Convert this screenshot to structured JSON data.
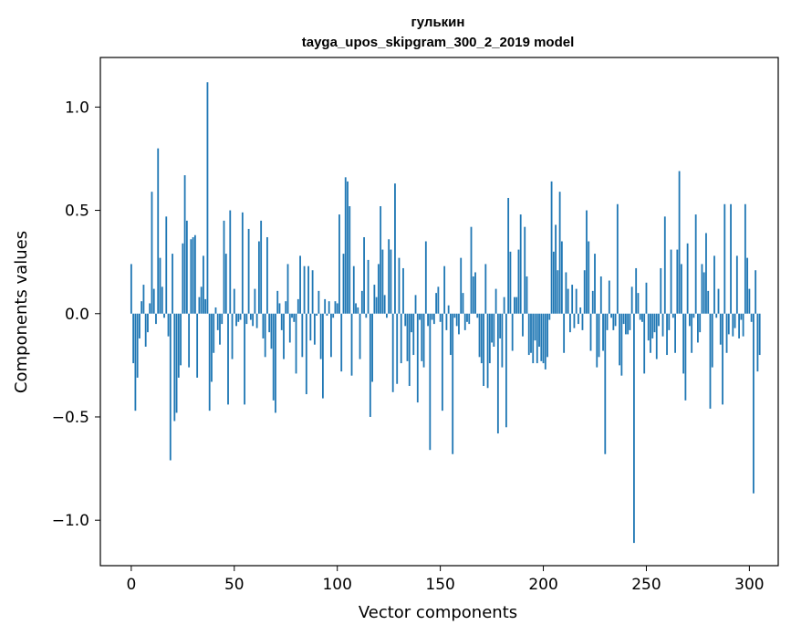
{
  "chart_data": {
    "type": "bar",
    "title": "гулькин",
    "subtitle": "tayga_upos_skipgram_300_2_2019 model",
    "xlabel": "Vector components",
    "ylabel": "Components values",
    "xlim": [
      -15,
      314
    ],
    "ylim": [
      -1.22,
      1.24
    ],
    "xticks": [
      {
        "value": 0,
        "label": "0"
      },
      {
        "value": 50,
        "label": "50"
      },
      {
        "value": 100,
        "label": "100"
      },
      {
        "value": 150,
        "label": "150"
      },
      {
        "value": 200,
        "label": "200"
      },
      {
        "value": 250,
        "label": "250"
      },
      {
        "value": 300,
        "label": "300"
      }
    ],
    "yticks": [
      {
        "value": 1.0,
        "label": "1.0"
      },
      {
        "value": 0.5,
        "label": "0.5"
      },
      {
        "value": 0.0,
        "label": "0.0"
      },
      {
        "value": -0.5,
        "label": "−0.5"
      },
      {
        "value": -1.0,
        "label": "−1.0"
      }
    ],
    "grid": false,
    "bar_color": "#1f77b4",
    "values": [
      0.24,
      -0.24,
      -0.47,
      -0.31,
      -0.12,
      0.06,
      0.14,
      -0.16,
      -0.09,
      0.05,
      0.59,
      0.12,
      -0.05,
      0.8,
      0.27,
      0.13,
      -0.02,
      0.47,
      -0.11,
      -0.71,
      0.29,
      -0.52,
      -0.48,
      -0.31,
      -0.25,
      0.34,
      0.67,
      0.45,
      -0.26,
      0.36,
      0.37,
      0.38,
      -0.31,
      0.08,
      0.13,
      0.28,
      0.07,
      1.12,
      -0.47,
      -0.33,
      -0.19,
      0.03,
      -0.08,
      -0.15,
      -0.05,
      0.45,
      0.29,
      -0.44,
      0.5,
      -0.22,
      0.12,
      -0.06,
      -0.04,
      -0.03,
      0.49,
      -0.44,
      -0.05,
      0.41,
      -0.03,
      -0.06,
      0.12,
      -0.07,
      0.35,
      0.45,
      -0.12,
      -0.21,
      0.37,
      -0.09,
      -0.17,
      -0.42,
      -0.48,
      0.11,
      0.05,
      -0.08,
      -0.22,
      0.06,
      0.24,
      -0.14,
      -0.02,
      -0.04,
      -0.29,
      0.07,
      0.28,
      -0.21,
      0.23,
      -0.39,
      0.23,
      -0.13,
      0.21,
      -0.15,
      -0.01,
      0.11,
      -0.22,
      -0.41,
      0.07,
      -0.01,
      0.06,
      -0.21,
      -0.02,
      0.06,
      0.05,
      0.48,
      -0.28,
      0.29,
      0.66,
      0.64,
      0.52,
      -0.3,
      0.23,
      0.05,
      0.03,
      -0.22,
      0.11,
      0.37,
      -0.02,
      0.26,
      -0.5,
      -0.33,
      0.14,
      0.08,
      0.24,
      0.52,
      0.31,
      0.09,
      -0.02,
      0.36,
      0.31,
      -0.38,
      0.63,
      -0.34,
      0.27,
      -0.24,
      0.22,
      -0.06,
      -0.23,
      -0.35,
      -0.09,
      -0.2,
      0.09,
      -0.43,
      -0.03,
      -0.23,
      -0.26,
      0.35,
      -0.06,
      -0.66,
      -0.03,
      -0.05,
      0.1,
      0.13,
      -0.04,
      -0.47,
      0.23,
      -0.08,
      0.04,
      -0.2,
      -0.68,
      -0.02,
      -0.06,
      -0.1,
      0.27,
      0.1,
      -0.08,
      -0.04,
      -0.05,
      0.42,
      0.18,
      0.2,
      -0.02,
      -0.21,
      -0.24,
      -0.35,
      0.24,
      -0.36,
      -0.24,
      -0.14,
      -0.16,
      0.12,
      -0.58,
      -0.12,
      -0.26,
      0.08,
      -0.55,
      0.56,
      0.3,
      -0.18,
      0.08,
      0.08,
      0.31,
      0.48,
      -0.11,
      0.42,
      0.18,
      -0.2,
      -0.19,
      -0.24,
      -0.13,
      -0.24,
      -0.16,
      -0.23,
      -0.24,
      -0.27,
      -0.21,
      -0.03,
      0.64,
      0.3,
      0.43,
      0.21,
      0.59,
      0.35,
      -0.19,
      0.2,
      0.12,
      -0.09,
      0.14,
      -0.07,
      0.12,
      -0.05,
      0.03,
      -0.08,
      0.21,
      0.5,
      0.35,
      -0.18,
      0.11,
      0.29,
      -0.26,
      -0.21,
      0.18,
      -0.18,
      -0.68,
      -0.08,
      0.16,
      -0.02,
      -0.08,
      -0.06,
      0.53,
      -0.25,
      -0.3,
      -0.05,
      -0.1,
      -0.1,
      -0.08,
      0.13,
      -1.11,
      0.22,
      0.1,
      -0.03,
      -0.04,
      -0.29,
      0.15,
      -0.13,
      -0.19,
      -0.12,
      -0.09,
      -0.22,
      -0.06,
      0.22,
      -0.11,
      0.47,
      -0.2,
      -0.08,
      0.31,
      -0.02,
      -0.19,
      0.31,
      0.69,
      0.24,
      -0.29,
      -0.42,
      0.34,
      -0.06,
      -0.19,
      -0.02,
      0.48,
      -0.14,
      -0.09,
      0.24,
      0.2,
      0.39,
      0.11,
      -0.46,
      -0.26,
      0.28,
      -0.02,
      0.12,
      -0.15,
      -0.44,
      0.53,
      -0.19,
      -0.1,
      0.53,
      -0.11,
      -0.07,
      0.28,
      -0.12,
      -0.03,
      -0.11,
      0.53,
      0.27,
      0.12,
      -0.04,
      -0.87,
      0.21,
      -0.28,
      -0.2
    ]
  }
}
